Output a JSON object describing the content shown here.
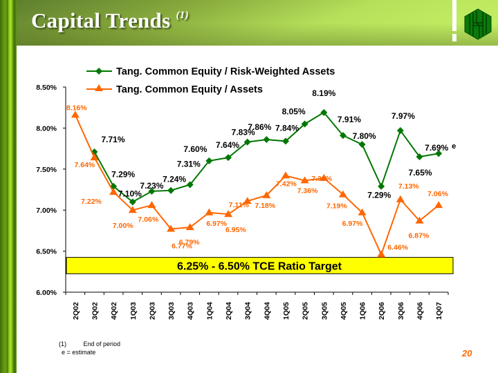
{
  "slide": {
    "title": "Capital Trends",
    "title_superscript": "(1)",
    "page_number": "20",
    "footnotes": [
      {
        "marker": "(1)",
        "text": "End of period"
      },
      {
        "marker": "",
        "text": "e = estimate"
      }
    ],
    "colors": {
      "tce_rwa": "#007700",
      "tce_assets": "#ff6600",
      "target_band": "#ffff00",
      "accent_page_number": "#ff6600"
    },
    "logo": "hexagon-logo-icon"
  },
  "chart_data": {
    "type": "line",
    "title": "",
    "xlabel": "",
    "ylabel": "",
    "categories": [
      "2Q02",
      "3Q02",
      "4Q02",
      "1Q03",
      "2Q03",
      "3Q03",
      "4Q03",
      "1Q04",
      "2Q04",
      "3Q04",
      "4Q04",
      "1Q05",
      "2Q05",
      "3Q05",
      "4Q05",
      "1Q06",
      "2Q06",
      "3Q06",
      "4Q06",
      "1Q07"
    ],
    "ylim": [
      6.0,
      8.5
    ],
    "yticks": [
      6.0,
      6.5,
      7.0,
      7.5,
      8.0,
      8.5
    ],
    "ytick_labels": [
      "6.00%",
      "6.50%",
      "7.00%",
      "7.50%",
      "8.00%",
      "8.50%"
    ],
    "grid": false,
    "legend_placement": "top-center",
    "series": [
      {
        "name": "Tang. Common Equity / Risk-Weighted Assets",
        "marker": "diamond",
        "color": "#007700",
        "label_color": "#000000",
        "values": [
          null,
          7.71,
          7.29,
          7.1,
          7.23,
          7.24,
          7.31,
          7.6,
          7.64,
          7.83,
          7.86,
          7.84,
          8.05,
          8.19,
          7.91,
          7.8,
          7.29,
          7.97,
          7.65,
          7.69
        ],
        "labels": [
          null,
          "7.71%",
          "7.29%",
          "7.10%",
          "7.23%",
          "7.24%",
          "7.31%",
          "7.60%",
          "7.64%",
          "7.83%",
          "7.86%",
          "7.84%",
          "8.05%",
          "8.19%",
          "7.91%",
          "7.80%",
          "7.29%",
          "7.97%",
          "7.65%",
          "7.69%"
        ],
        "annotations": {
          "19": "e"
        }
      },
      {
        "name": "Tang. Common Equity / Assets",
        "marker": "triangle",
        "color": "#ff6600",
        "label_color": "#ff6600",
        "values": [
          8.16,
          7.64,
          7.22,
          7.0,
          7.06,
          6.77,
          6.79,
          6.97,
          6.95,
          7.11,
          7.18,
          7.42,
          7.36,
          7.39,
          7.19,
          6.97,
          6.46,
          7.13,
          6.87,
          7.06
        ],
        "labels": [
          "8.16%",
          "7.64%",
          "7.22%",
          "7.00%",
          "7.06%",
          "6.77%",
          "6.79%",
          "6.97%",
          "6.95%",
          "7.11%",
          "7.18%",
          "7.42%",
          "7.36%",
          "7.39%",
          "7.19%",
          "6.97%",
          "6.46%",
          "7.13%",
          "6.87%",
          "7.06%"
        ]
      }
    ],
    "annotations": [
      {
        "type": "band",
        "range": [
          6.25,
          6.5
        ],
        "text": "6.25% - 6.50% TCE Ratio Target",
        "fill": "#ffff00"
      }
    ]
  }
}
